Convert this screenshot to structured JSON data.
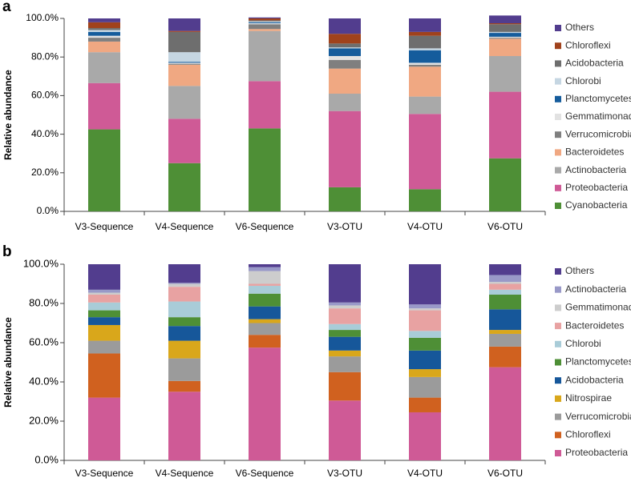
{
  "chart_data": [
    {
      "type": "bar",
      "stacked": true,
      "panel_label": "a",
      "title": "",
      "xlabel": "",
      "ylabel": "Relative abundance",
      "ylim": [
        0,
        100
      ],
      "yticks": [
        "0.0%",
        "20.0%",
        "40.0%",
        "60.0%",
        "80.0%",
        "100.0%"
      ],
      "categories": [
        "V3-Sequence",
        "V4-Sequence",
        "V6-Sequence",
        "V3-OTU",
        "V4-OTU",
        "V6-OTU"
      ],
      "series": [
        {
          "name": "Cyanobacteria",
          "color": "#4e8f36",
          "values": [
            42.5,
            25,
            43,
            12.5,
            11.5,
            27.5
          ]
        },
        {
          "name": "Proteobacteria",
          "color": "#cf5a96",
          "values": [
            24,
            23,
            24.5,
            39.5,
            39,
            34.5
          ]
        },
        {
          "name": "Actinobacteria",
          "color": "#a9a9a9",
          "values": [
            16,
            17,
            26,
            9,
            9,
            18.5
          ]
        },
        {
          "name": "Bacteroidetes",
          "color": "#f0a882",
          "values": [
            5.5,
            11,
            1,
            13,
            15.5,
            9
          ]
        },
        {
          "name": "Verrucomicrobia",
          "color": "#7f7f7f",
          "values": [
            2,
            0.5,
            2.5,
            4.5,
            1,
            0.5
          ]
        },
        {
          "name": "Gemmatimonadetes",
          "color": "#e2e2e2",
          "values": [
            1,
            0.5,
            0.5,
            2,
            1,
            0.5
          ]
        },
        {
          "name": "Planctomycetes",
          "color": "#155c9c",
          "values": [
            2,
            0.5,
            0.5,
            4,
            6.5,
            2
          ]
        },
        {
          "name": "Chlorobi",
          "color": "#c5d6e2",
          "values": [
            1,
            5,
            0.5,
            0.5,
            1,
            0.5
          ]
        },
        {
          "name": "Acidobacteria",
          "color": "#6e6e6e",
          "values": [
            1,
            10.5,
            0.5,
            2,
            6.5,
            4
          ]
        },
        {
          "name": "Chloroflexi",
          "color": "#a0421c",
          "values": [
            3,
            0.5,
            1,
            5,
            2,
            0.5
          ]
        },
        {
          "name": "Others",
          "color": "#523d8e",
          "values": [
            2,
            6.5,
            0.5,
            8,
            7,
            4
          ]
        }
      ]
    },
    {
      "type": "bar",
      "stacked": true,
      "panel_label": "b",
      "title": "",
      "xlabel": "",
      "ylabel": "Relative abundance",
      "ylim": [
        0,
        100
      ],
      "yticks": [
        "0.0%",
        "20.0%",
        "40.0%",
        "60.0%",
        "80.0%",
        "100.0%"
      ],
      "categories": [
        "V3-Sequence",
        "V4-Sequence",
        "V6-Sequence",
        "V3-OTU",
        "V4-OTU",
        "V6-OTU"
      ],
      "series": [
        {
          "name": "Proteobacteria",
          "color": "#cf5a96",
          "values": [
            32,
            35,
            57.5,
            30.5,
            24.5,
            47.5
          ]
        },
        {
          "name": "Chloroflexi",
          "color": "#d0611f",
          "values": [
            22.5,
            5.5,
            6.5,
            14.5,
            7.5,
            10.5
          ]
        },
        {
          "name": "Verrucomicrobia",
          "color": "#9b9b9b",
          "values": [
            6.5,
            11.5,
            6,
            8,
            10.5,
            6.5
          ]
        },
        {
          "name": "Nitrospirae",
          "color": "#d9a71b",
          "values": [
            8,
            9,
            2,
            3,
            4,
            2
          ]
        },
        {
          "name": "Acidobacteria",
          "color": "#16579a",
          "values": [
            4,
            7.5,
            6.5,
            7,
            9.5,
            10.5
          ]
        },
        {
          "name": "Planctomycetes",
          "color": "#4e8f36",
          "values": [
            3.5,
            4.5,
            6.5,
            3.5,
            6.5,
            7.5
          ]
        },
        {
          "name": "Chlorobi",
          "color": "#a9ccd8",
          "values": [
            4,
            8,
            4,
            3,
            3.5,
            2.5
          ]
        },
        {
          "name": "Bacteroidetes",
          "color": "#e8a2a2",
          "values": [
            4,
            7.5,
            1,
            8,
            10.5,
            3
          ]
        },
        {
          "name": "Gemmatimonadetes",
          "color": "#cdcdcd",
          "values": [
            1,
            1.5,
            6.5,
            1.5,
            1,
            1
          ]
        },
        {
          "name": "Actinobacteria",
          "color": "#9999c8",
          "values": [
            1.5,
            0.5,
            2,
            1.5,
            2,
            3.5
          ]
        },
        {
          "name": "Others",
          "color": "#523d8e",
          "values": [
            13,
            9.5,
            1.5,
            19.5,
            20.5,
            5.5
          ]
        }
      ]
    }
  ]
}
